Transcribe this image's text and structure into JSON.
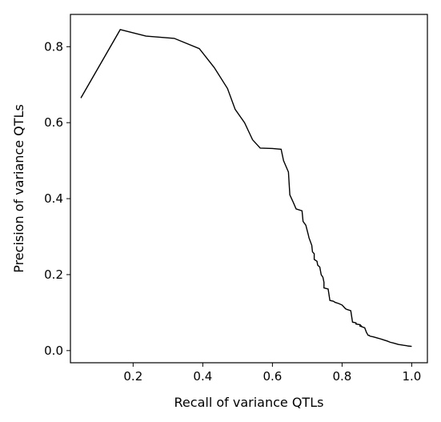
{
  "chart_data": {
    "type": "line",
    "title": "",
    "xlabel": "Recall of variance QTLs",
    "ylabel": "Precision of variance QTLs",
    "xlim": [
      0.02,
      1.045
    ],
    "ylim": [
      -0.032,
      0.885
    ],
    "xticks": [
      0.2,
      0.4,
      0.6,
      0.8,
      1.0
    ],
    "xtick_labels": [
      "0.2",
      "0.4",
      "0.6",
      "0.8",
      "1.0"
    ],
    "yticks": [
      0.0,
      0.2,
      0.4,
      0.6,
      0.8
    ],
    "ytick_labels": [
      "0.0",
      "0.2",
      "0.4",
      "0.6",
      "0.8"
    ],
    "grid": false,
    "line_color": "#000000",
    "series": [
      {
        "x": [
          0.05,
          0.163,
          0.237,
          0.318,
          0.39,
          0.433,
          0.471,
          0.493,
          0.52,
          0.543,
          0.565,
          0.6,
          0.625,
          0.632,
          0.646,
          0.65,
          0.66,
          0.668,
          0.685,
          0.688,
          0.696,
          0.703,
          0.705,
          0.713,
          0.715,
          0.72,
          0.72,
          0.728,
          0.73,
          0.736,
          0.74,
          0.745,
          0.748,
          0.748,
          0.76,
          0.765,
          0.775,
          0.78,
          0.79,
          0.8,
          0.81,
          0.815,
          0.825,
          0.83,
          0.84,
          0.84,
          0.852,
          0.855,
          0.85,
          0.865,
          0.87,
          0.875,
          0.878,
          0.88,
          0.89,
          0.898,
          0.906,
          0.913,
          0.92,
          0.93,
          0.938,
          0.947,
          0.955,
          0.962,
          0.97,
          0.977,
          0.985,
          0.99,
          1.0
        ],
        "y": [
          0.665,
          0.845,
          0.828,
          0.822,
          0.795,
          0.745,
          0.69,
          0.635,
          0.6,
          0.555,
          0.533,
          0.532,
          0.53,
          0.5,
          0.47,
          0.41,
          0.39,
          0.373,
          0.368,
          0.34,
          0.33,
          0.305,
          0.297,
          0.277,
          0.26,
          0.255,
          0.24,
          0.235,
          0.225,
          0.22,
          0.2,
          0.193,
          0.18,
          0.165,
          0.162,
          0.132,
          0.13,
          0.127,
          0.124,
          0.12,
          0.11,
          0.108,
          0.105,
          0.075,
          0.073,
          0.07,
          0.068,
          0.065,
          0.065,
          0.06,
          0.048,
          0.04,
          0.04,
          0.038,
          0.036,
          0.034,
          0.032,
          0.03,
          0.028,
          0.025,
          0.022,
          0.02,
          0.018,
          0.016,
          0.015,
          0.014,
          0.013,
          0.012,
          0.011
        ]
      }
    ]
  }
}
